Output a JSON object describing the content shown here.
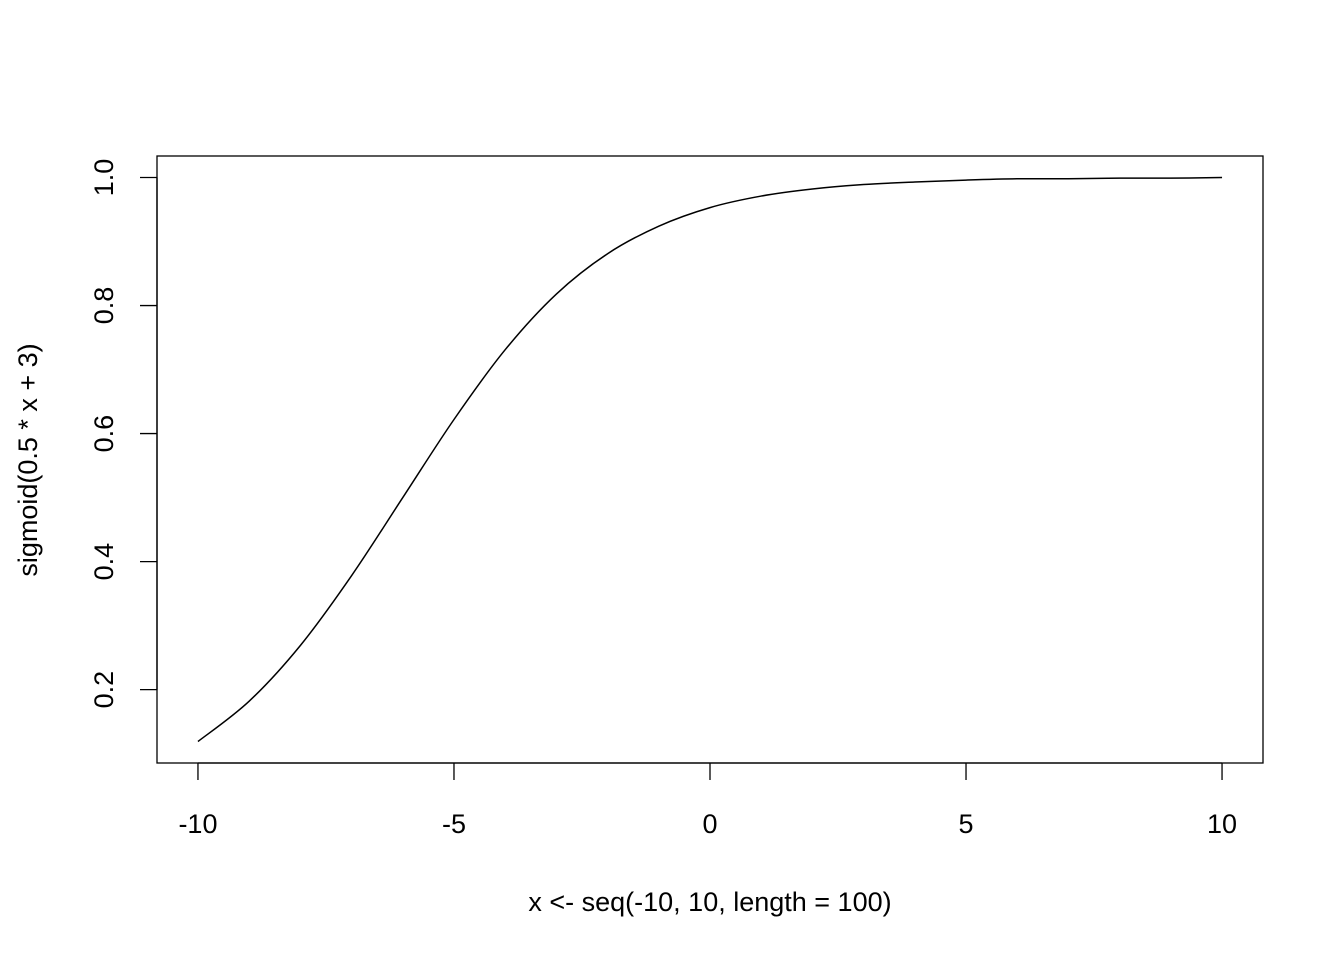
{
  "chart_data": {
    "type": "line",
    "title": "",
    "xlabel": "x <- seq(-10, 10, length = 100)",
    "ylabel": "sigmoid(0.5 * x + 3)",
    "xlim": [
      -10.8,
      10.8
    ],
    "ylim": [
      0.0854,
      1.0336
    ],
    "xticks": [
      -10,
      -5,
      0,
      5,
      10
    ],
    "xtick_labels": [
      "-10",
      "-5",
      "0",
      "5",
      "10"
    ],
    "yticks": [
      0.2,
      0.4,
      0.6,
      0.8,
      1.0
    ],
    "ytick_labels": [
      "0.2",
      "0.4",
      "0.6",
      "0.8",
      "1.0"
    ],
    "grid": false,
    "series": [
      {
        "x": [
          -10,
          -9,
          -8,
          -7,
          -6,
          -5,
          -4,
          -3,
          -2,
          -1,
          0,
          1,
          2,
          3,
          4,
          5,
          6,
          7,
          8,
          9,
          10
        ],
        "values": [
          0.119,
          0.182,
          0.269,
          0.378,
          0.5,
          0.622,
          0.731,
          0.818,
          0.881,
          0.924,
          0.953,
          0.971,
          0.982,
          0.989,
          0.993,
          0.996,
          0.998,
          0.998,
          0.999,
          0.999,
          1.0
        ]
      }
    ]
  }
}
